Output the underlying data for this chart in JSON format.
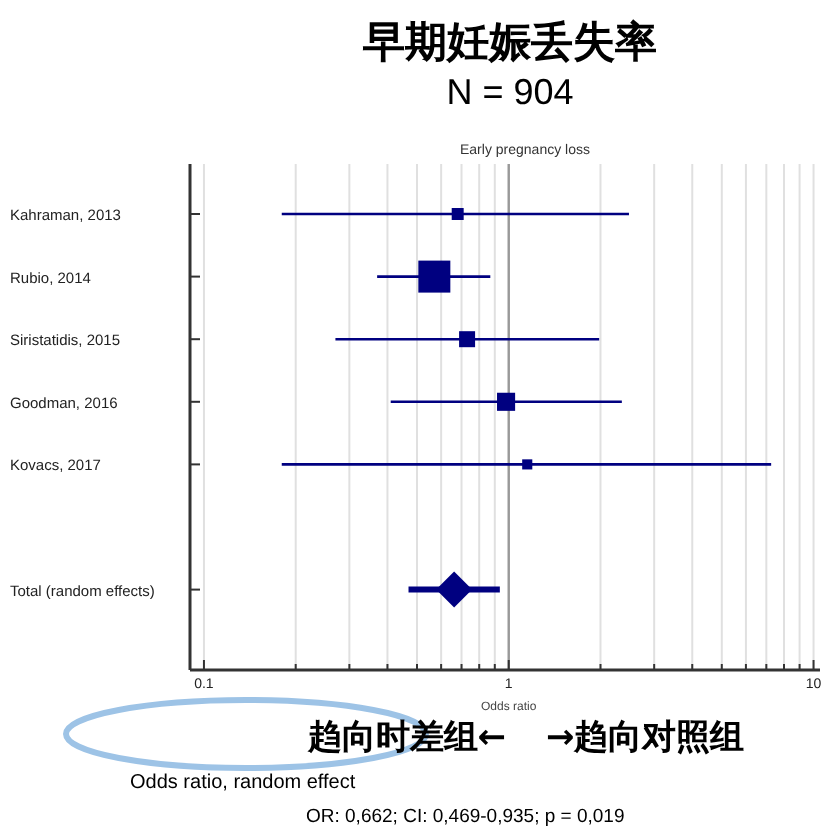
{
  "chart_data": {
    "type": "scatter",
    "orientation": "horizontal",
    "title": "早期妊娠丢失率",
    "subtitle": "N = 904",
    "xlabel": "Odds ratio",
    "annotations": [
      "Early pregnancy loss",
      "趋向时差组←",
      "→趋向对照组",
      "Odds ratio, random effect",
      "OR:  0,662; CI: 0,469-0,935; p = 0,019"
    ],
    "categories": [
      "Kahraman, 2013",
      "Rubio, 2014",
      "Siristatidis, 2015",
      "Goodman, 2016",
      "Kovacs, 2017",
      null,
      "Total (random effects)"
    ],
    "series": [
      {
        "type": "bubble",
        "marker": "square",
        "color": "#000080",
        "values": [
          0.68,
          0.57,
          0.73,
          0.98,
          1.15,
          null,
          null
        ],
        "sizes": [
          0.14,
          1,
          0.25,
          0.32,
          0.1,
          null,
          null
        ],
        "errors": [
          [
            0.18,
            2.48
          ],
          [
            0.37,
            0.87
          ],
          [
            0.27,
            1.98
          ],
          [
            0.41,
            2.35
          ],
          [
            0.18,
            7.26
          ],
          null,
          null
        ]
      },
      {
        "type": "scatter",
        "marker": "diamond",
        "color": "#000080",
        "values": [
          null,
          null,
          null,
          null,
          null,
          null,
          0.662
        ],
        "errors": [
          null,
          null,
          null,
          null,
          null,
          null,
          [
            0.469,
            0.935
          ]
        ]
      }
    ],
    "log": "x",
    "xlim": [
      0.09,
      10.5
    ],
    "xticks": [
      {
        "value": 0.1,
        "label": "0.1"
      },
      {
        "value": 0.2,
        "label": null
      },
      {
        "value": 0.3,
        "label": null
      },
      {
        "value": 0.4,
        "label": null
      },
      {
        "value": 0.5,
        "label": null
      },
      {
        "value": 0.6,
        "label": null
      },
      {
        "value": 0.7,
        "label": null
      },
      {
        "value": 0.8,
        "label": null
      },
      {
        "value": 0.9,
        "label": null
      },
      1,
      {
        "value": 2,
        "label": null
      },
      {
        "value": 3,
        "label": null
      },
      {
        "value": 4,
        "label": null
      },
      {
        "value": 5,
        "label": null
      },
      {
        "value": 6,
        "label": null
      },
      {
        "value": 7,
        "label": null
      },
      {
        "value": 8,
        "label": null
      },
      {
        "value": 9,
        "label": null
      },
      10
    ],
    "grid": "x",
    "ref_lines": [
      {
        "axis": "x",
        "value": 1,
        "color": "#999999"
      }
    ]
  }
}
